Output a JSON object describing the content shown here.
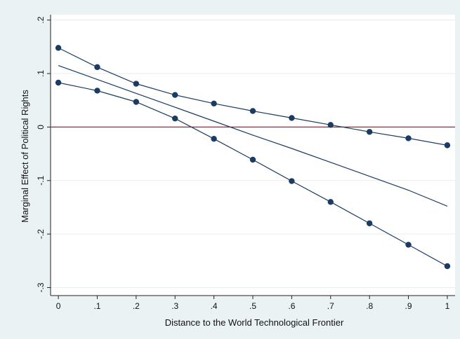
{
  "chart_data": {
    "type": "line",
    "title": "",
    "xlabel": "Distance to the World Technological Frontier",
    "ylabel": "Marginal Effect of Political Rights",
    "x": [
      0,
      0.1,
      0.2,
      0.3,
      0.4,
      0.5,
      0.6,
      0.7,
      0.8,
      0.9,
      1
    ],
    "x_tick_labels": [
      "0",
      ".1",
      ".2",
      ".3",
      ".4",
      ".5",
      ".6",
      ".7",
      ".8",
      ".9",
      "1"
    ],
    "y_ticks": [
      -0.3,
      -0.2,
      -0.1,
      0,
      0.1,
      0.2
    ],
    "y_tick_labels": [
      "-.3",
      "-.2",
      "-.1",
      "0",
      ".1",
      ".2"
    ],
    "xlim": [
      -0.02,
      1.02
    ],
    "ylim": [
      -0.315,
      0.21
    ],
    "grid": true,
    "series": [
      {
        "role": "upper-bound",
        "markers": true,
        "values": [
          0.148,
          0.112,
          0.081,
          0.06,
          0.044,
          0.03,
          0.017,
          0.004,
          -0.009,
          -0.021,
          -0.034
        ]
      },
      {
        "role": "point-estimate",
        "markers": false,
        "values": [
          0.115,
          0.089,
          0.063,
          0.037,
          0.011,
          -0.015,
          -0.04,
          -0.066,
          -0.092,
          -0.118,
          -0.148
        ]
      },
      {
        "role": "lower-bound",
        "markers": true,
        "values": [
          0.083,
          0.068,
          0.047,
          0.016,
          -0.022,
          -0.061,
          -0.101,
          -0.14,
          -0.18,
          -0.22,
          -0.26
        ]
      }
    ],
    "reference_line": {
      "y": 0,
      "color": "#c8102e"
    },
    "colors": {
      "background": "#eaf2f3",
      "plot_area": "#ffffff",
      "series": "#1b3b63",
      "gridline": "#e6eef2"
    }
  }
}
